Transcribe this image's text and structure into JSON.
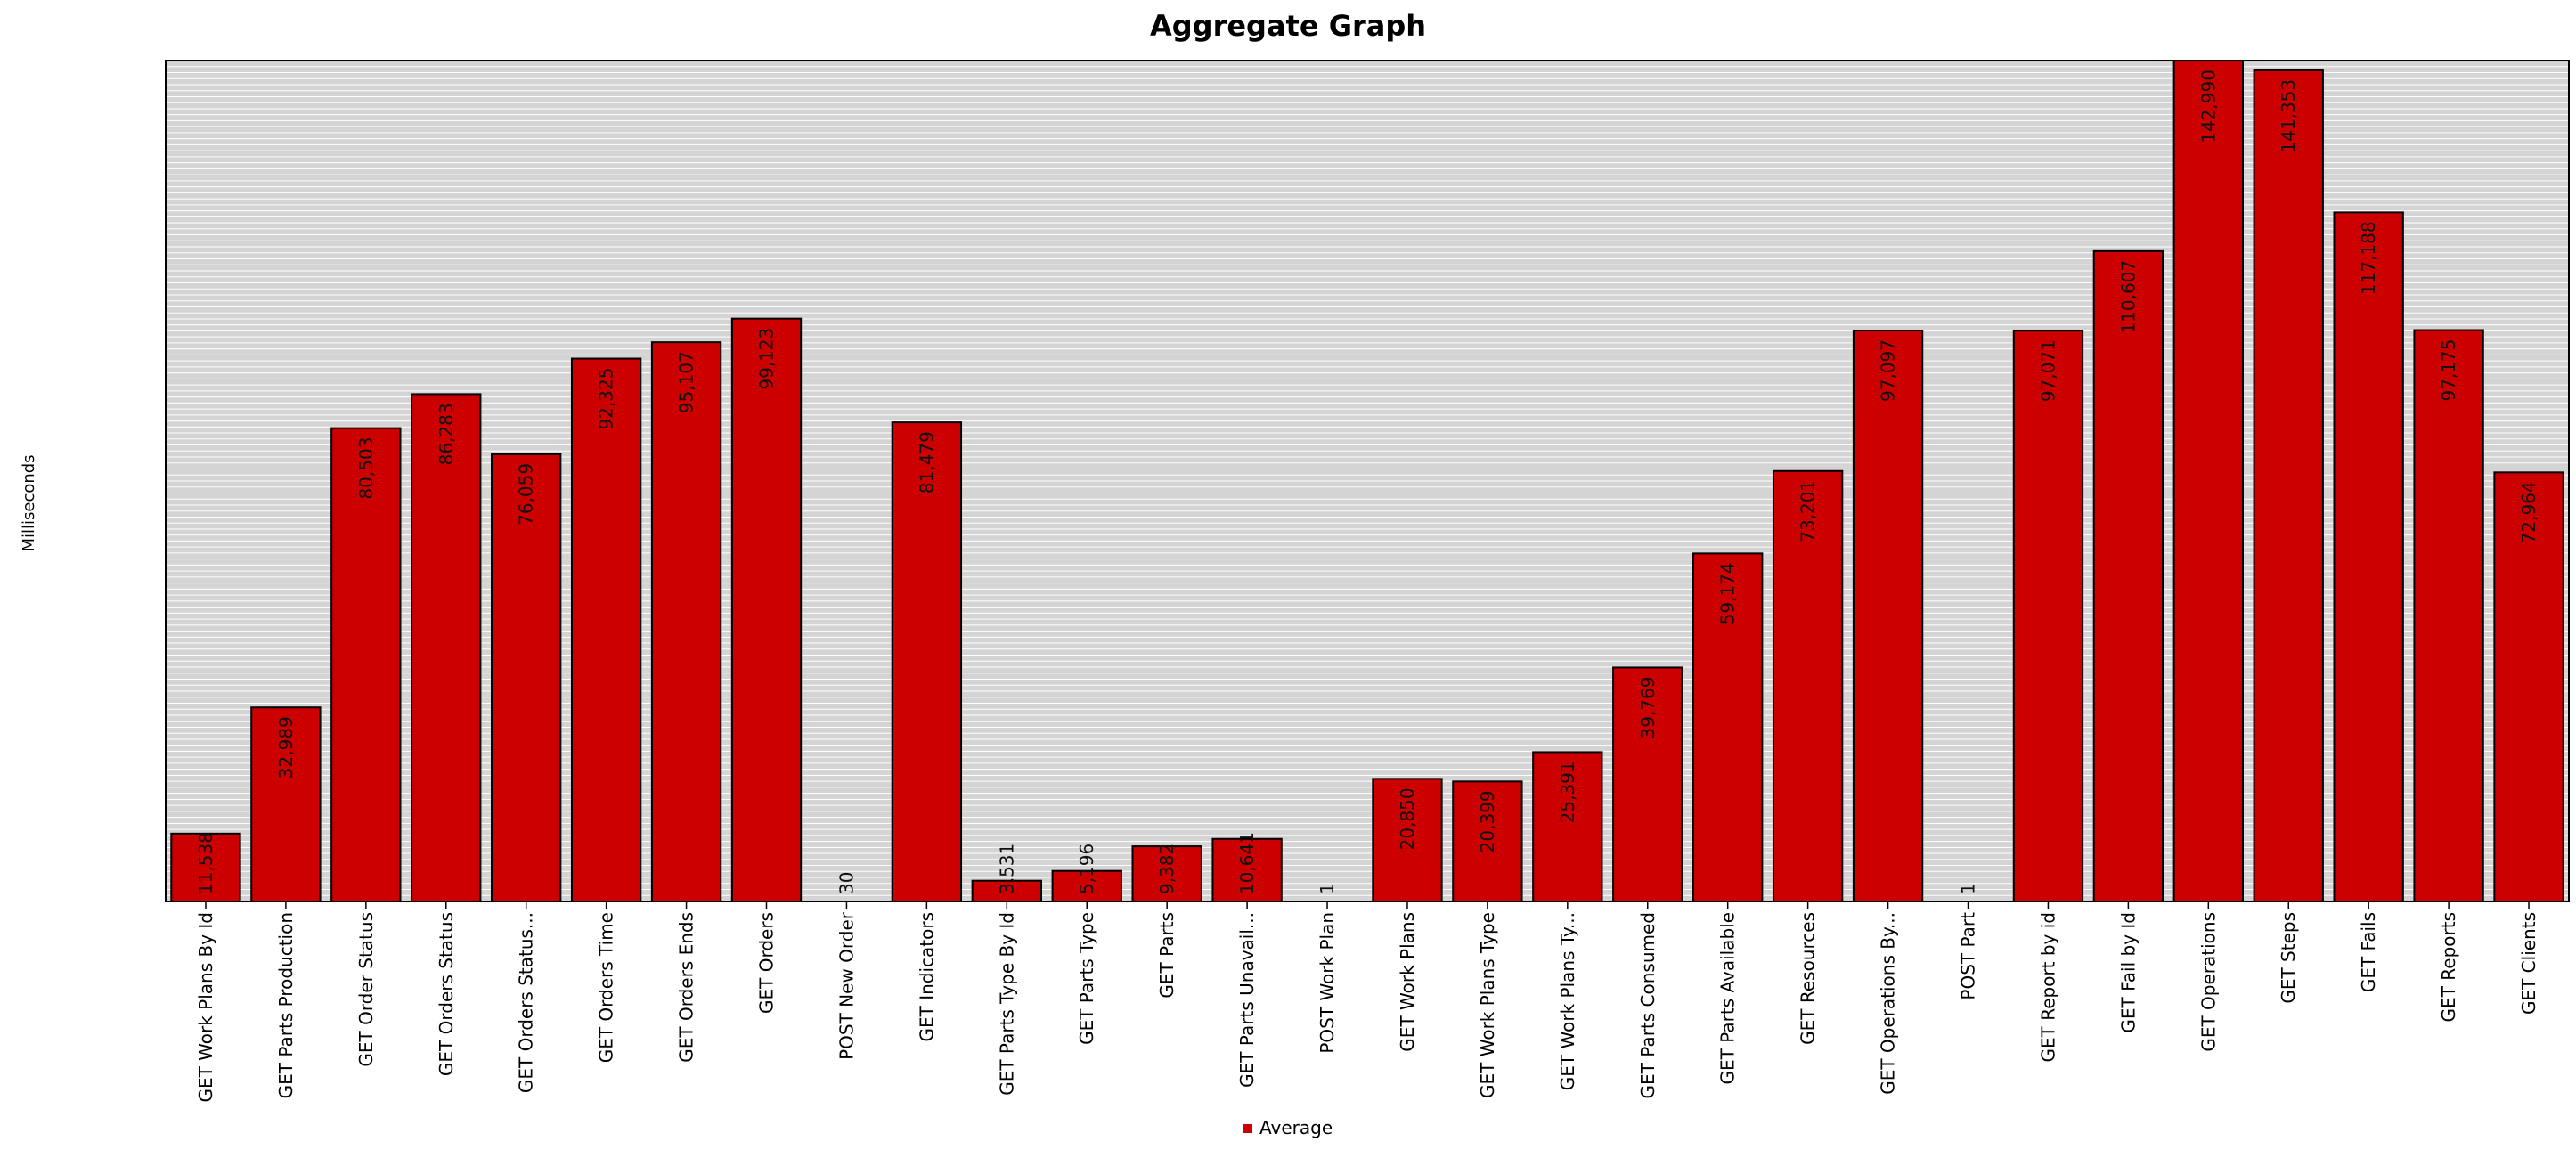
{
  "chart_data": {
    "type": "bar",
    "title": "Aggregate Graph",
    "ylabel": "Milliseconds",
    "xlabel": "",
    "ylim": [
      0,
      143000
    ],
    "grid": true,
    "legend_position": "bottom-center",
    "categories": [
      "GET Work Plans By Id",
      "GET Parts Production",
      "GET Order Status",
      "GET Orders Status",
      "GET Orders Status...",
      "GET Orders Time",
      "GET Orders Ends",
      "GET Orders",
      "POST New Order",
      "GET Indicators",
      "GET Parts Type By Id",
      "GET Parts Type",
      "GET Parts",
      "GET Parts Unavail...",
      "POST Work Plan",
      "GET Work Plans",
      "GET Work Plans Type",
      "GET Work Plans Ty...",
      "GET Parts Consumed",
      "GET Parts Available",
      "GET Resources",
      "GET Operations By...",
      "POST Part",
      "GET Report by id",
      "GET Fail by Id",
      "GET Operations",
      "GET Steps",
      "GET Fails",
      "GET Reports",
      "GET Clients"
    ],
    "series": [
      {
        "name": "Average",
        "color": "#cc0000",
        "values": [
          11538,
          32989,
          80503,
          86283,
          76059,
          92325,
          95107,
          99123,
          30,
          81479,
          3531,
          5196,
          9382,
          10641,
          1,
          20850,
          20399,
          25391,
          39769,
          59174,
          73201,
          97097,
          1,
          97071,
          110607,
          142990,
          141353,
          117188,
          97175,
          72964
        ],
        "labels": [
          "11,538",
          "32,989",
          "80,503",
          "86,283",
          "76,059",
          "92,325",
          "95,107",
          "99,123",
          "30",
          "81,479",
          "3,531",
          "5,196",
          "9,382",
          "10,641",
          "1",
          "20,850",
          "20,399",
          "25,391",
          "39,769",
          "59,174",
          "73,201",
          "97,097",
          "1",
          "97,071",
          "110,607",
          "142,990",
          "141,353",
          "117,188",
          "97,175",
          "72,964"
        ]
      }
    ],
    "colors": {
      "plot_background": "#d4d4d4",
      "grid_line": "#ffffff",
      "bar": "#cc0000",
      "bar_border": "#000000"
    }
  }
}
